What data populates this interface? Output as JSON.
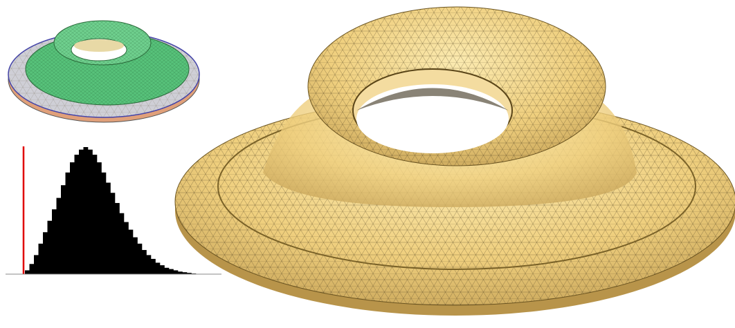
{
  "chart_data": {
    "type": "histogram",
    "values": [
      3,
      8,
      15,
      24,
      33,
      42,
      51,
      60,
      70,
      80,
      88,
      94,
      98,
      100,
      98,
      94,
      88,
      80,
      72,
      64,
      56,
      48,
      41,
      35,
      29,
      24,
      19,
      15,
      12,
      9,
      7,
      5,
      4,
      3,
      2,
      1.5,
      1,
      0.5
    ],
    "color": "#000000",
    "marker_color": "#e00000"
  }
}
